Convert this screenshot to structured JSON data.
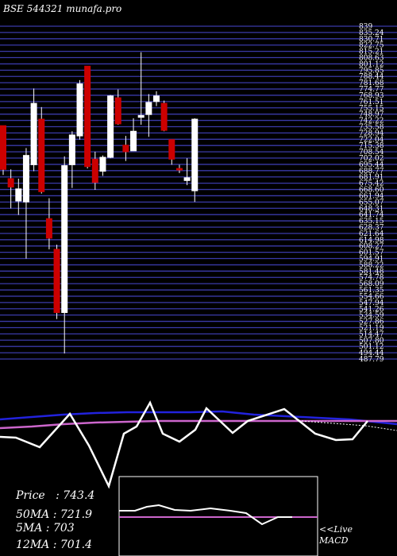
{
  "chart_data": {
    "type": "candlestick",
    "title": "BSE 544321 munafa.pro",
    "ylim": [
      482,
      840
    ],
    "y_tick_labels": [
      "839",
      "835.24",
      "830.71",
      "822.75",
      "815.21",
      "808.63",
      "801.12",
      "795.85",
      "788.44",
      "781.68",
      "774.77",
      "768.93",
      "761.51",
      "755.15",
      "748.97",
      "742.22",
      "735.58",
      "728.94",
      "722.04",
      "715.38",
      "708.54",
      "702.02",
      "695.44",
      "688.77",
      "681.91",
      "675.42",
      "668.60",
      "661.94",
      "655.07",
      "648.31",
      "641.74",
      "635.15",
      "628.37",
      "621.64",
      "614.98",
      "608.27",
      "601.57",
      "594.91",
      "588.22",
      "581.48",
      "574.78",
      "568.09",
      "561.35",
      "554.66",
      "547.94",
      "541.26",
      "534.59",
      "527.86",
      "521.19",
      "514.47",
      "507.80",
      "501.12",
      "494.44",
      "487.79"
    ],
    "candles": [
      {
        "o": 733,
        "h": 733,
        "l": 680,
        "c": 686
      },
      {
        "o": 676,
        "h": 686,
        "l": 644,
        "c": 667
      },
      {
        "o": 652,
        "h": 676,
        "l": 637,
        "c": 665
      },
      {
        "o": 651,
        "h": 709,
        "l": 590,
        "c": 701
      },
      {
        "o": 691,
        "h": 773,
        "l": 684,
        "c": 757
      },
      {
        "o": 740,
        "h": 753,
        "l": 660,
        "c": 662
      },
      {
        "o": 633,
        "h": 655,
        "l": 600,
        "c": 612
      },
      {
        "o": 600,
        "h": 605,
        "l": 525,
        "c": 532
      },
      {
        "o": 532,
        "h": 700,
        "l": 488,
        "c": 690
      },
      {
        "o": 691,
        "h": 727,
        "l": 666,
        "c": 723
      },
      {
        "o": 722,
        "h": 782,
        "l": 718,
        "c": 778
      },
      {
        "o": 797,
        "h": 797,
        "l": 687,
        "c": 689
      },
      {
        "o": 697,
        "h": 705,
        "l": 664,
        "c": 672
      },
      {
        "o": 684,
        "h": 701,
        "l": 679,
        "c": 699
      },
      {
        "o": 699,
        "h": 766,
        "l": 698,
        "c": 765
      },
      {
        "o": 763,
        "h": 772,
        "l": 734,
        "c": 735
      },
      {
        "o": 712,
        "h": 722,
        "l": 695,
        "c": 705
      },
      {
        "o": 706,
        "h": 741,
        "l": 706,
        "c": 727
      },
      {
        "o": 742,
        "h": 812,
        "l": 734,
        "c": 744
      },
      {
        "o": 745,
        "h": 767,
        "l": 721,
        "c": 758
      },
      {
        "o": 759,
        "h": 770,
        "l": 754,
        "c": 765
      },
      {
        "o": 757,
        "h": 760,
        "l": 727,
        "c": 728
      },
      {
        "o": 718,
        "h": 718,
        "l": 691,
        "c": 697
      },
      {
        "o": 687,
        "h": 691,
        "l": 682,
        "c": 686
      },
      {
        "o": 674,
        "h": 698,
        "l": 669,
        "c": 677
      },
      {
        "o": 663,
        "h": 741,
        "l": 651,
        "c": 740
      }
    ],
    "price": "743.4",
    "ma50": "721.9",
    "ma5": "703",
    "ma12": "701.4",
    "grid": true,
    "colors": {
      "up": "#ffffff",
      "down": "#cc0000",
      "grid": "#3a3aa8",
      "ma_blue": "#2222dd",
      "ma_pink": "#cc66cc",
      "line": "#ffffff"
    },
    "live_label": "<<Live",
    "macd_label": "MACD"
  }
}
